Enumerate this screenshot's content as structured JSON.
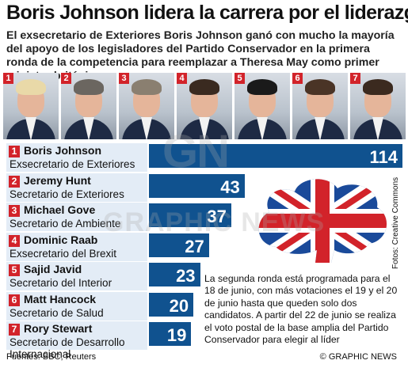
{
  "header": {
    "title": "Boris Johnson lidera la carrera por el liderazgo",
    "subtitle": "El exsecretario de Exteriores Boris Johnson ganó con mucho la mayoría del apoyo de los legisladores del Partido Conservador en la primera ronda de la competencia para reemplazar a Theresa May como primer ministro británico"
  },
  "photos": [
    "1",
    "2",
    "3",
    "4",
    "5",
    "6",
    "7"
  ],
  "chart_data": {
    "type": "bar",
    "orientation": "horizontal",
    "categories": [
      "Boris Johnson",
      "Jeremy Hunt",
      "Michael Gove",
      "Dominic Raab",
      "Sajid Javid",
      "Matt Hancock",
      "Rory Stewart"
    ],
    "values": [
      114,
      43,
      37,
      27,
      23,
      20,
      19
    ],
    "color": "#10528f",
    "title": "",
    "xlabel": "",
    "ylabel": "",
    "xlim": [
      0,
      114
    ]
  },
  "rows": [
    {
      "rank": "1",
      "name": "Boris Johnson",
      "role": "Exsecretario de Exteriores",
      "value": "114"
    },
    {
      "rank": "2",
      "name": "Jeremy Hunt",
      "role": "Secretario de Exteriores",
      "value": "43"
    },
    {
      "rank": "3",
      "name": "Michael Gove",
      "role": "Secretario de Ambiente",
      "value": "37"
    },
    {
      "rank": "4",
      "name": "Dominic Raab",
      "role": "Exsecretario del Brexit",
      "value": "27"
    },
    {
      "rank": "5",
      "name": "Sajid Javid",
      "role": "Secretario del Interior",
      "value": "23"
    },
    {
      "rank": "6",
      "name": "Matt Hancock",
      "role": "Secretario de Salud",
      "value": "20"
    },
    {
      "rank": "7",
      "name": "Rory Stewart",
      "role": "Secretario de Desarrollo Internacional",
      "value": "19"
    }
  ],
  "note": "La segunda ronda está programada para el 18 de junio, con más votaciones el 19 y el 20 de junio hasta que queden solo dos candidatos. A partir del 22 de junio se realiza el voto postal de la base amplia del Partido Conservador para elegir al líder",
  "source": "Fuentes: BBC, Reuters",
  "credit": "© GRAPHIC NEWS",
  "photo_credit": "Fotos: Creative Commons",
  "watermark": {
    "logo": "GN",
    "text": "GRAPHIC NEWS"
  },
  "colors": {
    "accent_red": "#d2232a",
    "bar_blue": "#10528f",
    "label_bg": "#e3ecf6",
    "logo_red": "#d2232a",
    "logo_blue": "#1a4a9a"
  },
  "icons": {
    "logo": "conservative-tree-union-flag-logo"
  }
}
